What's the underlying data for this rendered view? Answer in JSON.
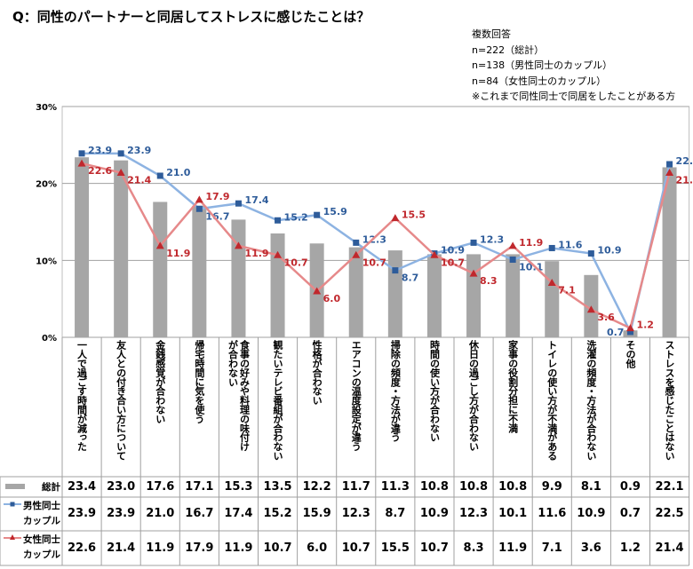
{
  "title": "Q：同性のパートナーと同居してストレスに感じたことは？",
  "notes": [
    "複数回答",
    "n=222（総計）",
    "n=138（男性同士のカップル）",
    "n=84（女性同士のカップル）",
    "※これまで同性同士で同居をしたことがある方"
  ],
  "chart_data": {
    "type": "bar",
    "title": "Q：同性のパートナーと同居してストレスに感じたことは？",
    "ylim": [
      0,
      30
    ],
    "yticks": [
      "0%",
      "10%",
      "20%",
      "30%"
    ],
    "grid": true,
    "categories": [
      "一人で過ごす時間が減った",
      "友人との付き合い方について",
      "金銭感覚が合わない",
      "帰宅時間に気を使う",
      "食事の好みや料理の味付け\nが合わない",
      "観たいテレビ番組が合わない",
      "性格が合わない",
      "エアコンの温度設定が違う",
      "掃除の頻度・方法が違う",
      "時間の使い方が合わない",
      "休日の過ごし方が合わない",
      "家事の役割分担に不満",
      "トイレの使い方が不満がある",
      "洗濯の頻度・方法が合わない",
      "その他",
      "ストレスを感じたことはない"
    ],
    "series": [
      {
        "name": "総計",
        "type": "bar",
        "color": "#a6a6a6",
        "values": [
          23.4,
          23.0,
          17.6,
          17.1,
          15.3,
          13.5,
          12.2,
          11.7,
          11.3,
          10.8,
          10.8,
          10.8,
          9.9,
          8.1,
          0.9,
          22.1
        ]
      },
      {
        "name": "男性同士\nカップル",
        "type": "line",
        "color": "#8db3e2",
        "marker_color": "#2e5c9a",
        "marker": "square",
        "values": [
          23.9,
          23.9,
          21.0,
          16.7,
          17.4,
          15.2,
          15.9,
          12.3,
          8.7,
          10.9,
          12.3,
          10.1,
          11.6,
          10.9,
          0.7,
          22.5
        ]
      },
      {
        "name": "女性同士\nカップル",
        "type": "line",
        "color": "#e6898a",
        "marker_color": "#c0282d",
        "marker": "triangle",
        "values": [
          22.6,
          21.4,
          11.9,
          17.9,
          11.9,
          10.7,
          6.0,
          10.7,
          15.5,
          10.7,
          8.3,
          11.9,
          7.1,
          3.6,
          1.2,
          21.4
        ]
      }
    ]
  }
}
